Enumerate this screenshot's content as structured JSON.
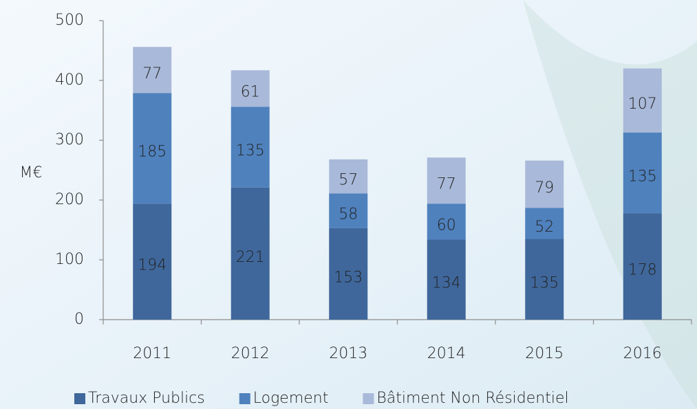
{
  "chart_data": {
    "type": "bar",
    "stacked": true,
    "y_label": "M€",
    "categories": [
      "2011",
      "2012",
      "2013",
      "2014",
      "2015",
      "2016"
    ],
    "series": [
      {
        "name": "Travaux Publics",
        "color": "#3f679b",
        "values": [
          194,
          221,
          153,
          134,
          135,
          178
        ]
      },
      {
        "name": "Logement",
        "color": "#4f81bd",
        "values": [
          185,
          135,
          58,
          60,
          52,
          135
        ]
      },
      {
        "name": "Bâtiment Non Résidentiel",
        "color": "#a9b9d9",
        "values": [
          77,
          61,
          57,
          77,
          79,
          107
        ]
      }
    ],
    "ylim": [
      0,
      500
    ],
    "yticks": [
      0,
      100,
      200,
      300,
      400,
      500
    ],
    "legend": "bottom"
  }
}
